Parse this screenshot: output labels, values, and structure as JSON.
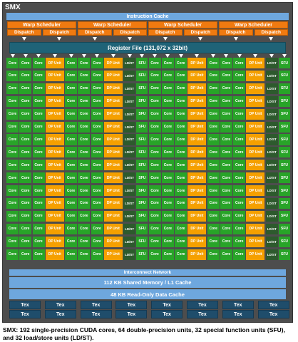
{
  "smx": {
    "title": "SMX",
    "instruction_cache": "Instruction Cache",
    "warp_scheduler_label": "Warp Scheduler",
    "dispatch_label": "Dispatch",
    "register_file": "Register File (131,072 x 32bit)",
    "unit_labels": {
      "core": "Core",
      "dp": "DP Unit",
      "ldst": "LD/ST",
      "sfu": "SFU"
    },
    "unit_row_pattern": [
      "core",
      "core",
      "core",
      "dp",
      "core",
      "core",
      "core",
      "dp",
      "ldst",
      "sfu",
      "core",
      "core",
      "core",
      "dp",
      "core",
      "core",
      "core",
      "dp",
      "ldst",
      "sfu"
    ],
    "unit_rows": 16,
    "interconnect": "Interconnect Network",
    "shared_memory": "112 KB Shared Memory / L1 Cache",
    "readonly_cache": "48 KB Read-Only Data Cache",
    "tex_label": "Tex",
    "tex_rows": 2,
    "tex_per_row": 8,
    "warp_count": 4,
    "colors": {
      "background": "#4d4d4d",
      "cache": "#6ea7de",
      "scheduler": "#f07a10",
      "register_file": "#1f6377",
      "core": "#28a428",
      "dp_unit": "#f5a000",
      "ldst": "#2d5a2d",
      "tex": "#1f4d6b"
    }
  },
  "caption": "SMX: 192 single-precision CUDA cores, 64 double-precision units, 32 special function units (SFU), and 32 load/store units (LD/ST)."
}
